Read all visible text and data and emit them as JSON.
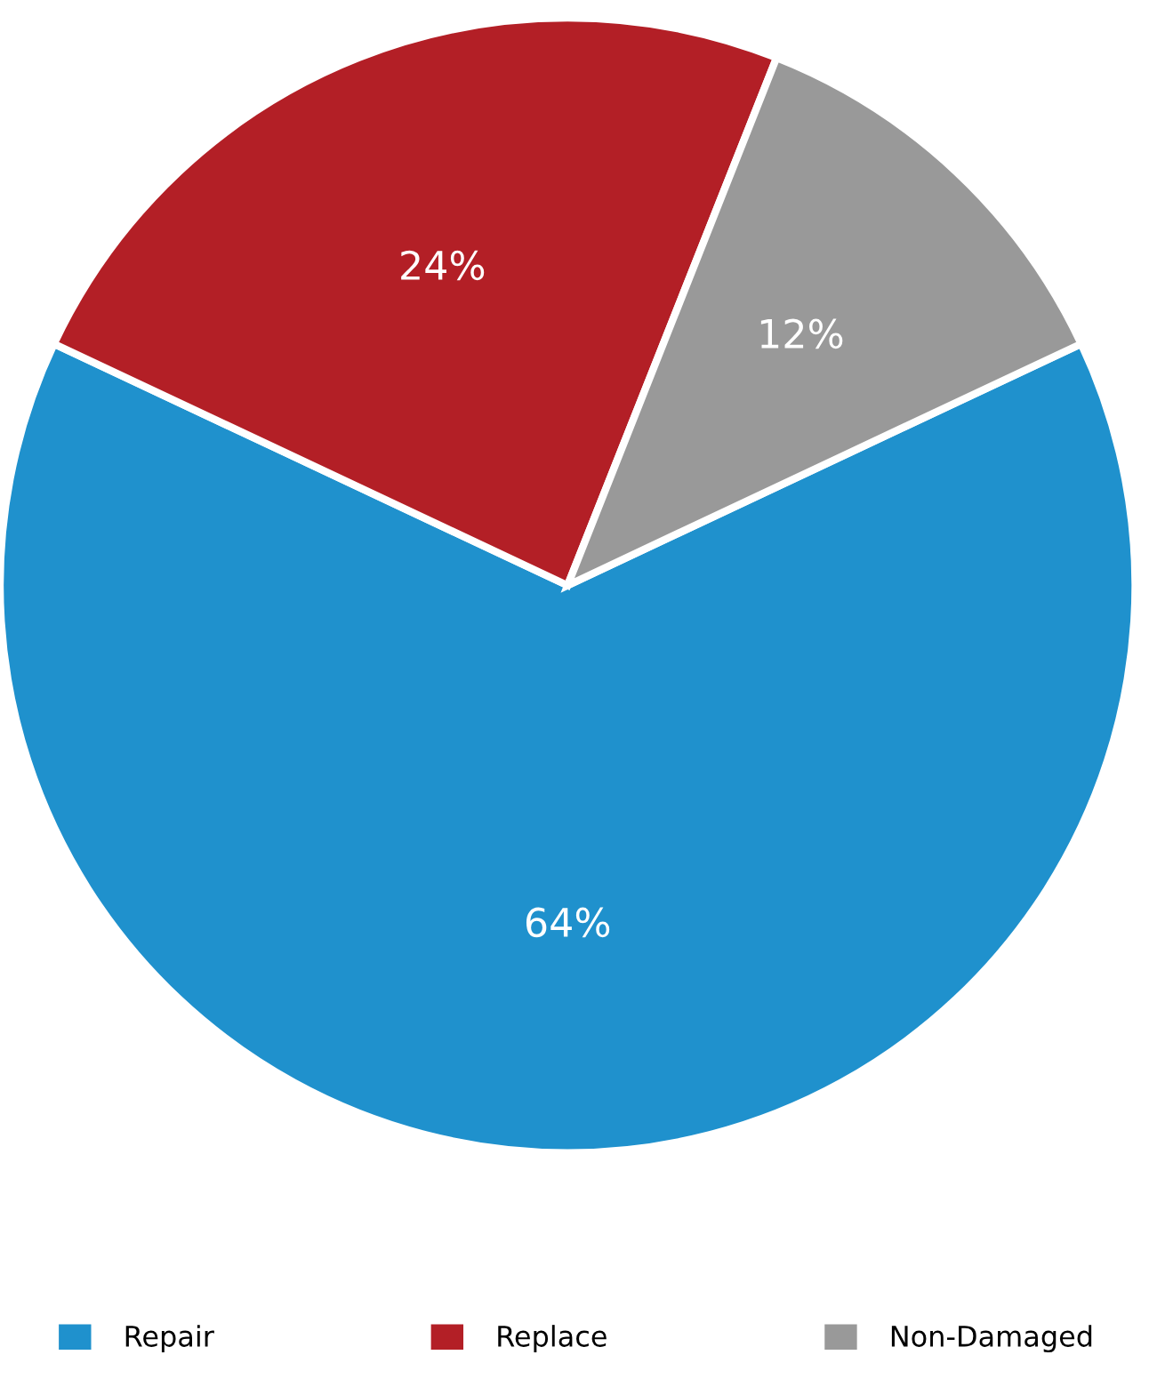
{
  "chart_data": {
    "type": "pie",
    "categories": [
      "Repair",
      "Replace",
      "Non-Damaged"
    ],
    "values": [
      64,
      24,
      12
    ],
    "value_labels": [
      "64%",
      "24%",
      "12%"
    ],
    "colors": [
      "#1f91cd",
      "#b31f26",
      "#999999"
    ],
    "legend": "bottom"
  }
}
